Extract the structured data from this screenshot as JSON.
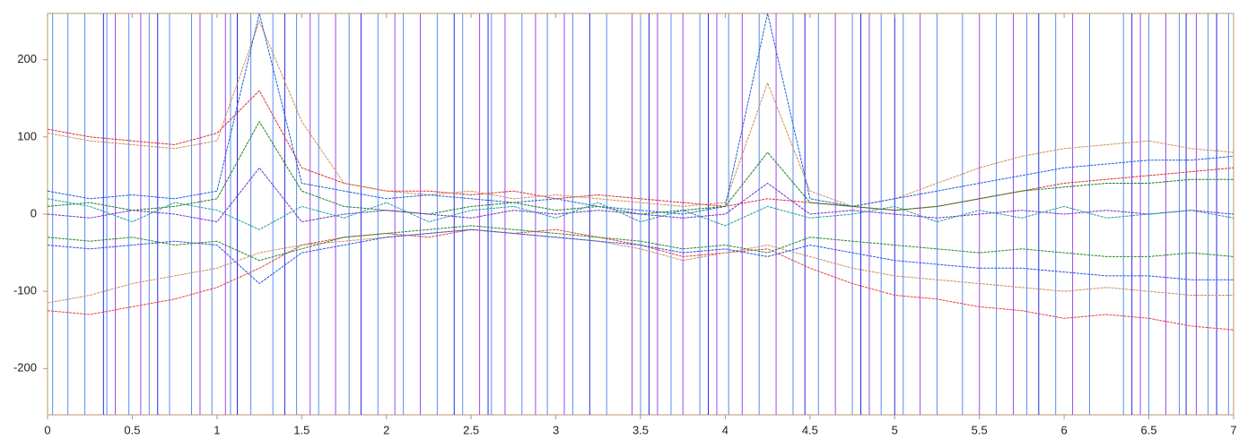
{
  "chart_data": {
    "type": "line",
    "xlim": [
      0,
      7
    ],
    "ylim": [
      -260,
      260
    ],
    "xticks": [
      0,
      0.5,
      1,
      1.5,
      2,
      2.5,
      3,
      3.5,
      4,
      4.5,
      5,
      5.5,
      6,
      6.5,
      7
    ],
    "yticks": [
      -200,
      -100,
      0,
      100,
      200
    ],
    "x": [
      0,
      0.25,
      0.5,
      0.75,
      1,
      1.25,
      1.5,
      1.75,
      2,
      2.25,
      2.5,
      2.75,
      3,
      3.25,
      3.5,
      3.75,
      4,
      4.25,
      4.5,
      4.75,
      5,
      5.25,
      5.5,
      5.75,
      6,
      6.25,
      6.5,
      6.75,
      7
    ],
    "event_lines": [
      {
        "color": "#5b8def",
        "x": [
          0.03,
          0.12,
          0.22,
          0.35,
          0.48,
          0.6,
          0.72,
          0.85,
          0.97,
          1.08,
          1.2,
          1.33,
          1.47,
          1.6,
          1.78,
          1.95,
          2.1,
          2.3,
          2.45,
          2.62,
          2.8,
          2.95,
          3.1,
          3.3,
          3.5,
          3.68,
          3.85,
          4.02,
          4.2,
          4.4,
          4.55,
          4.75,
          4.92,
          5.05,
          5.25,
          5.4,
          5.6,
          5.78,
          5.95,
          6.15,
          6.35,
          6.5,
          6.68,
          6.85,
          6.97
        ]
      },
      {
        "color": "#9a4cf0",
        "x": [
          0.4,
          0.55,
          0.9,
          1.05,
          1.55,
          1.7,
          2.05,
          2.2,
          2.55,
          2.7,
          2.88,
          3.05,
          3.45,
          3.6,
          3.75,
          3.95,
          4.1,
          4.3,
          4.65,
          4.85,
          5.15,
          5.5,
          5.7,
          6.05,
          6.45,
          6.6,
          6.78
        ]
      },
      {
        "color": "#2a2ae0",
        "x": [
          0.33,
          0.65,
          1.12,
          1.4,
          1.85,
          2.4,
          2.6,
          3.2,
          3.55,
          3.9,
          4.47,
          4.8,
          5.0,
          5.85,
          6.4,
          6.72,
          6.9
        ]
      }
    ],
    "series": [
      {
        "color": "#e03030",
        "values": [
          110,
          100,
          95,
          90,
          105,
          160,
          60,
          40,
          30,
          30,
          25,
          30,
          20,
          25,
          20,
          15,
          10,
          20,
          15,
          10,
          5,
          10,
          20,
          30,
          40,
          45,
          50,
          55,
          60
        ]
      },
      {
        "color": "#d09050",
        "values": [
          105,
          95,
          90,
          85,
          95,
          250,
          120,
          40,
          30,
          25,
          30,
          20,
          25,
          20,
          15,
          10,
          15,
          170,
          30,
          10,
          20,
          40,
          60,
          75,
          85,
          90,
          95,
          85,
          80
        ]
      },
      {
        "color": "#2060e0",
        "values": [
          30,
          20,
          25,
          20,
          30,
          260,
          40,
          30,
          20,
          25,
          20,
          15,
          20,
          10,
          5,
          0,
          10,
          260,
          20,
          10,
          20,
          30,
          40,
          50,
          60,
          65,
          70,
          70,
          75
        ]
      },
      {
        "color": "#208020",
        "values": [
          10,
          15,
          5,
          10,
          20,
          120,
          30,
          10,
          5,
          0,
          10,
          15,
          5,
          10,
          0,
          5,
          10,
          80,
          15,
          10,
          5,
          10,
          20,
          30,
          35,
          40,
          40,
          45,
          45
        ]
      },
      {
        "color": "#7030d0",
        "values": [
          0,
          -5,
          5,
          0,
          -10,
          60,
          -10,
          0,
          5,
          0,
          -5,
          5,
          0,
          5,
          0,
          -5,
          0,
          40,
          0,
          5,
          0,
          -5,
          0,
          5,
          0,
          5,
          0,
          5,
          0
        ]
      },
      {
        "color": "#e84040",
        "values": [
          -125,
          -130,
          -120,
          -110,
          -95,
          -70,
          -40,
          -30,
          -25,
          -30,
          -20,
          -25,
          -20,
          -30,
          -40,
          -55,
          -50,
          -45,
          -70,
          -90,
          -105,
          -110,
          -120,
          -125,
          -135,
          -130,
          -135,
          -145,
          -150
        ]
      },
      {
        "color": "#c89060",
        "values": [
          -115,
          -105,
          -90,
          -80,
          -70,
          -50,
          -40,
          -35,
          -30,
          -25,
          -20,
          -25,
          -30,
          -35,
          -45,
          -60,
          -50,
          -40,
          -55,
          -70,
          -80,
          -85,
          -90,
          -95,
          -100,
          -95,
          -100,
          -105,
          -105
        ]
      },
      {
        "color": "#3050e8",
        "values": [
          -40,
          -45,
          -40,
          -35,
          -40,
          -90,
          -50,
          -40,
          -30,
          -25,
          -20,
          -25,
          -30,
          -35,
          -40,
          -50,
          -45,
          -55,
          -40,
          -50,
          -60,
          -65,
          -70,
          -70,
          -75,
          -80,
          -80,
          -85,
          -85
        ]
      },
      {
        "color": "#2a8a2a",
        "values": [
          -30,
          -35,
          -30,
          -40,
          -35,
          -60,
          -45,
          -30,
          -25,
          -20,
          -15,
          -20,
          -25,
          -30,
          -35,
          -45,
          -40,
          -50,
          -30,
          -35,
          -40,
          -45,
          -50,
          -45,
          -50,
          -55,
          -55,
          -50,
          -55
        ]
      },
      {
        "color": "#20a0a0",
        "values": [
          20,
          10,
          -10,
          15,
          5,
          -20,
          10,
          -5,
          15,
          -10,
          5,
          10,
          -5,
          15,
          -10,
          5,
          -15,
          10,
          -5,
          0,
          10,
          -10,
          5,
          -5,
          10,
          -5,
          0,
          5,
          -5
        ]
      }
    ]
  }
}
